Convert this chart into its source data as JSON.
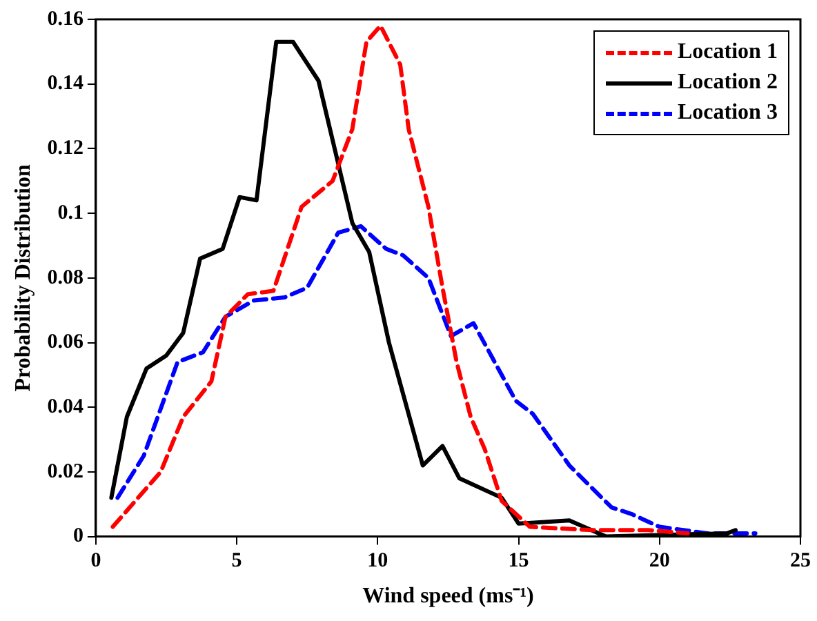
{
  "chart_data": {
    "type": "line",
    "xlabel": "Wind speed (ms⁻¹)",
    "ylabel": "Probability Distribution",
    "xlim": [
      0,
      25
    ],
    "xticks": [
      0,
      5,
      10,
      15,
      20,
      25
    ],
    "ylim": [
      0,
      0.16
    ],
    "yticks": [
      0,
      0.02,
      0.04,
      0.06,
      0.08,
      0.1,
      0.12,
      0.14,
      0.16
    ],
    "grid": false,
    "legend": "top right",
    "marker": "none",
    "series": [
      {
        "name": "Location 1",
        "color": "#ff0000",
        "line_style": "dashed",
        "x": [
          0.6,
          1.5,
          2.3,
          3.1,
          4.1,
          4.6,
          5.4,
          6.3,
          7.3,
          8.4,
          9.1,
          9.6,
          10.1,
          10.8,
          11.1,
          11.8,
          12.3,
          12.8,
          13.3,
          13.8,
          14.4,
          15.4,
          17.6,
          19.6,
          21.0
        ],
        "values": [
          0.003,
          0.012,
          0.02,
          0.037,
          0.048,
          0.068,
          0.075,
          0.076,
          0.102,
          0.11,
          0.126,
          0.153,
          0.158,
          0.146,
          0.126,
          0.102,
          0.077,
          0.054,
          0.037,
          0.027,
          0.011,
          0.003,
          0.002,
          0.002,
          0.001
        ]
      },
      {
        "name": "Location 2",
        "color": "#000000",
        "line_style": "solid",
        "x": [
          0.55,
          1.1,
          1.8,
          2.5,
          3.1,
          3.7,
          4.5,
          5.1,
          5.7,
          6.4,
          7.0,
          7.9,
          9.1,
          9.7,
          10.4,
          11.6,
          12.3,
          12.9,
          14.4,
          15.0,
          16.8,
          18.1,
          22.4,
          22.7
        ],
        "values": [
          0.012,
          0.037,
          0.052,
          0.056,
          0.063,
          0.086,
          0.089,
          0.105,
          0.104,
          0.153,
          0.153,
          0.141,
          0.097,
          0.088,
          0.06,
          0.022,
          0.028,
          0.018,
          0.012,
          0.004,
          0.005,
          0.0,
          0.001,
          0.002
        ]
      },
      {
        "name": "Location 3",
        "color": "#0000ff",
        "line_style": "dashed",
        "x": [
          0.77,
          1.7,
          2.9,
          3.8,
          4.6,
          5.6,
          6.7,
          7.5,
          8.6,
          9.4,
          10.3,
          10.9,
          11.8,
          12.6,
          13.4,
          14.9,
          15.5,
          16.8,
          18.3,
          19.0,
          20.0,
          21.7,
          23.4
        ],
        "values": [
          0.012,
          0.025,
          0.054,
          0.057,
          0.068,
          0.073,
          0.074,
          0.077,
          0.094,
          0.096,
          0.089,
          0.087,
          0.08,
          0.062,
          0.066,
          0.042,
          0.038,
          0.022,
          0.009,
          0.007,
          0.003,
          0.001,
          0.001
        ]
      }
    ]
  }
}
